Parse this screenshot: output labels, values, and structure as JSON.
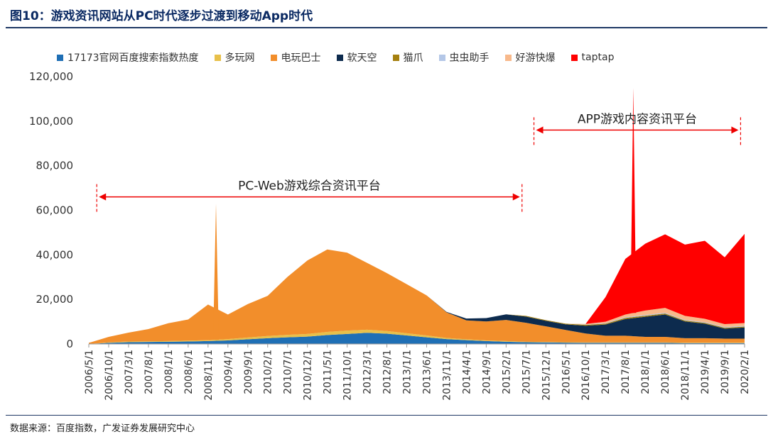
{
  "title": "图10：游戏资讯网站从PC时代逐步过渡到移动App时代",
  "source": "数据来源：百度指数，广发证券发展研究中心",
  "chart_data": {
    "type": "area",
    "stacked": true,
    "ylim": [
      0,
      120000
    ],
    "yticks": [
      "0",
      "20,000",
      "40,000",
      "60,000",
      "80,000",
      "100,000",
      "120,000"
    ],
    "ytick_values": [
      0,
      20000,
      40000,
      60000,
      80000,
      100000,
      120000
    ],
    "xticks": [
      "2006/5/1",
      "2006/10/1",
      "2007/3/1",
      "2007/8/1",
      "2008/1/1",
      "2008/6/1",
      "2008/11/1",
      "2009/4/1",
      "2009/9/1",
      "2010/2/1",
      "2010/7/1",
      "2010/12/1",
      "2011/5/1",
      "2011/10/1",
      "2012/3/1",
      "2012/8/1",
      "2013/1/1",
      "2013/6/1",
      "2013/11/1",
      "2014/4/1",
      "2014/9/1",
      "2015/2/1",
      "2015/7/1",
      "2015/12/1",
      "2016/5/1",
      "2016/10/1",
      "2017/3/1",
      "2017/8/1",
      "2018/1/1",
      "2018/6/1",
      "2018/11/1",
      "2019/4/1",
      "2019/9/1",
      "2020/2/1"
    ],
    "series": [
      {
        "name": "17173官网百度搜索指数热度",
        "color": "#1f6fb5",
        "values": [
          0,
          500,
          800,
          900,
          1000,
          1100,
          1300,
          1600,
          2100,
          2600,
          3000,
          3300,
          4000,
          4500,
          5000,
          4600,
          3800,
          3000,
          2200,
          1700,
          1300,
          1000,
          800,
          700,
          600,
          500,
          500,
          500,
          500,
          500,
          400,
          400,
          400,
          400
        ]
      },
      {
        "name": "多玩网",
        "color": "#e8c04a",
        "values": [
          0,
          200,
          300,
          300,
          300,
          400,
          400,
          600,
          800,
          1000,
          1100,
          1200,
          1400,
          1500,
          1400,
          1200,
          1000,
          800,
          500,
          400,
          300,
          300,
          200,
          200,
          200,
          200,
          200,
          200,
          200,
          200,
          200,
          200,
          200,
          200
        ]
      },
      {
        "name": "电玩巴士",
        "color": "#f28e2b",
        "values": [
          500,
          2500,
          4000,
          5500,
          8000,
          9500,
          16000,
          11000,
          15000,
          18000,
          26000,
          33000,
          37000,
          35000,
          30000,
          26000,
          22000,
          18000,
          11500,
          8500,
          8500,
          9500,
          8500,
          7000,
          5500,
          4000,
          3000,
          3000,
          2500,
          2500,
          2000,
          2000,
          1800,
          1800
        ]
      },
      {
        "name": "软天空",
        "color": "#0d2b4e",
        "values": [
          0,
          0,
          0,
          0,
          0,
          0,
          0,
          0,
          0,
          0,
          0,
          0,
          0,
          0,
          0,
          0,
          0,
          0,
          200,
          800,
          1500,
          2500,
          2800,
          2500,
          2500,
          3500,
          5000,
          7500,
          9000,
          10000,
          7500,
          6500,
          4500,
          5000
        ]
      },
      {
        "name": "猫爪",
        "color": "#a5800f",
        "values": [
          0,
          0,
          0,
          0,
          0,
          0,
          0,
          0,
          0,
          0,
          0,
          0,
          0,
          0,
          0,
          0,
          0,
          0,
          0,
          0,
          0,
          0,
          300,
          300,
          300,
          400,
          400,
          500,
          500,
          500,
          400,
          400,
          400,
          400
        ]
      },
      {
        "name": "虫虫助手",
        "color": "#b4c7e7",
        "values": [
          0,
          0,
          0,
          0,
          0,
          0,
          0,
          0,
          0,
          0,
          0,
          0,
          0,
          0,
          0,
          0,
          0,
          0,
          0,
          0,
          0,
          0,
          0,
          0,
          0,
          100,
          200,
          300,
          300,
          300,
          300,
          300,
          300,
          300
        ]
      },
      {
        "name": "好游快爆",
        "color": "#f8b98b",
        "values": [
          0,
          0,
          0,
          0,
          0,
          0,
          0,
          0,
          0,
          0,
          0,
          0,
          0,
          0,
          0,
          0,
          0,
          0,
          0,
          0,
          0,
          0,
          0,
          0,
          0,
          300,
          700,
          1200,
          2000,
          2200,
          1800,
          1500,
          1300,
          1300
        ]
      },
      {
        "name": "taptap",
        "color": "#ff0000",
        "values": [
          0,
          0,
          0,
          0,
          0,
          0,
          0,
          0,
          0,
          0,
          0,
          0,
          0,
          0,
          0,
          0,
          0,
          0,
          0,
          0,
          0,
          0,
          0,
          0,
          0,
          0,
          11000,
          25000,
          30000,
          33000,
          32000,
          35000,
          30000,
          40000
        ]
      }
    ],
    "spikes": [
      {
        "series": "电玩巴士",
        "x": "2009/1",
        "value": 63000
      },
      {
        "series": "taptap",
        "x": "2017/10",
        "value": 115000
      }
    ],
    "annotations": [
      {
        "text": "PC-Web游戏综合资讯平台",
        "from": "2006/7/1",
        "to": "2015/6/1",
        "y": 66000
      },
      {
        "text": "APP游戏内容资讯平台",
        "from": "2015/9/1",
        "to": "2020/1/1",
        "y": 96000
      }
    ]
  }
}
